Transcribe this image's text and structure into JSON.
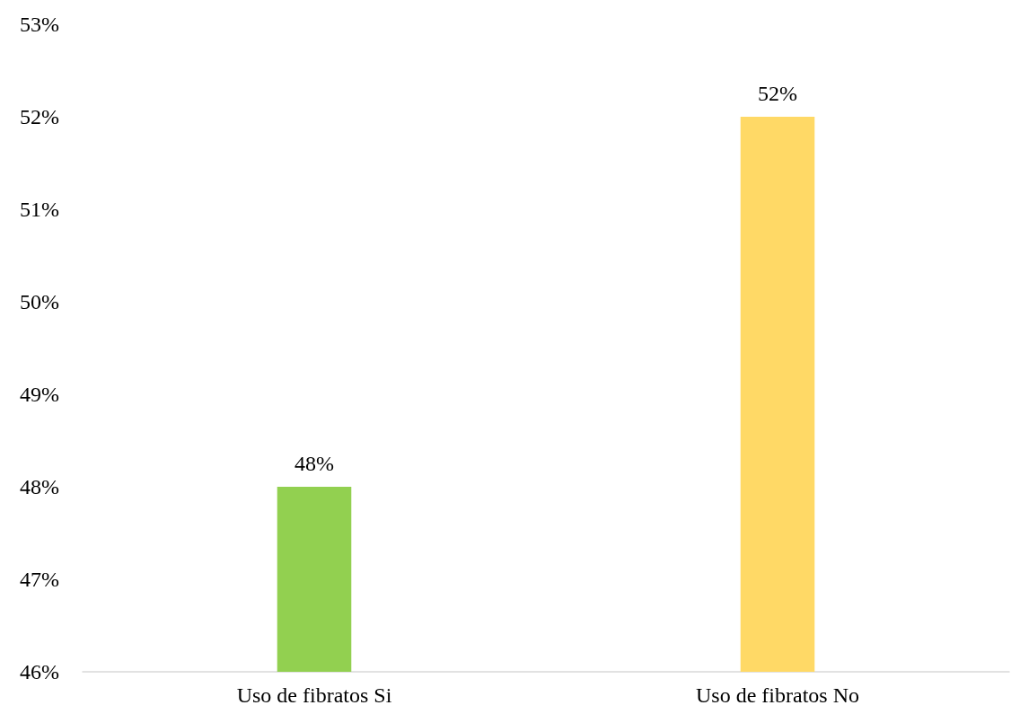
{
  "chart_data": {
    "type": "bar",
    "categories": [
      "Uso de fibratos Si",
      "Uso de fibratos No"
    ],
    "values": [
      48,
      52
    ],
    "colors": [
      "#92d050",
      "#ffd966"
    ],
    "value_labels": [
      "48%",
      "52%"
    ],
    "ylim": [
      46,
      53
    ],
    "yticks": [
      {
        "value": 46,
        "label": "46%"
      },
      {
        "value": 47,
        "label": "47%"
      },
      {
        "value": 48,
        "label": "48%"
      },
      {
        "value": 49,
        "label": "49%"
      },
      {
        "value": 50,
        "label": "50%"
      },
      {
        "value": 51,
        "label": "51%"
      },
      {
        "value": 52,
        "label": "52%"
      },
      {
        "value": 53,
        "label": "53%"
      }
    ],
    "grid": false
  }
}
